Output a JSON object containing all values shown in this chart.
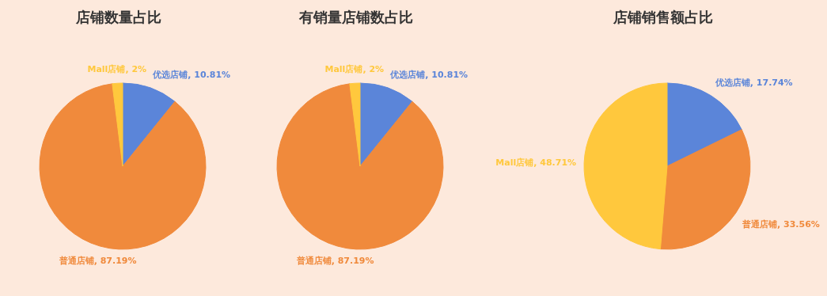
{
  "chart_data": [
    {
      "type": "pie",
      "title": "店铺数量占比",
      "categories": [
        "优选店铺",
        "普通店铺",
        "Mall店铺"
      ],
      "values": [
        10.81,
        87.19,
        2
      ],
      "value_labels": [
        "10.81%",
        "87.19%",
        "2%"
      ],
      "colors": [
        "#5b85d9",
        "#f08a3c",
        "#ffc83d"
      ]
    },
    {
      "type": "pie",
      "title": "有销量店铺数占比",
      "categories": [
        "优选店铺",
        "普通店铺",
        "Mall店铺"
      ],
      "values": [
        10.81,
        87.19,
        2
      ],
      "value_labels": [
        "10.81%",
        "87.19%",
        "2%"
      ],
      "colors": [
        "#5b85d9",
        "#f08a3c",
        "#ffc83d"
      ]
    },
    {
      "type": "pie",
      "title": "店铺销售额占比",
      "categories": [
        "优选店铺",
        "普通店铺",
        "Mall店铺"
      ],
      "values": [
        17.74,
        33.56,
        48.71
      ],
      "value_labels": [
        "17.74%",
        "33.56%",
        "48.71%"
      ],
      "colors": [
        "#5b85d9",
        "#f08a3c",
        "#ffc83d"
      ]
    }
  ]
}
